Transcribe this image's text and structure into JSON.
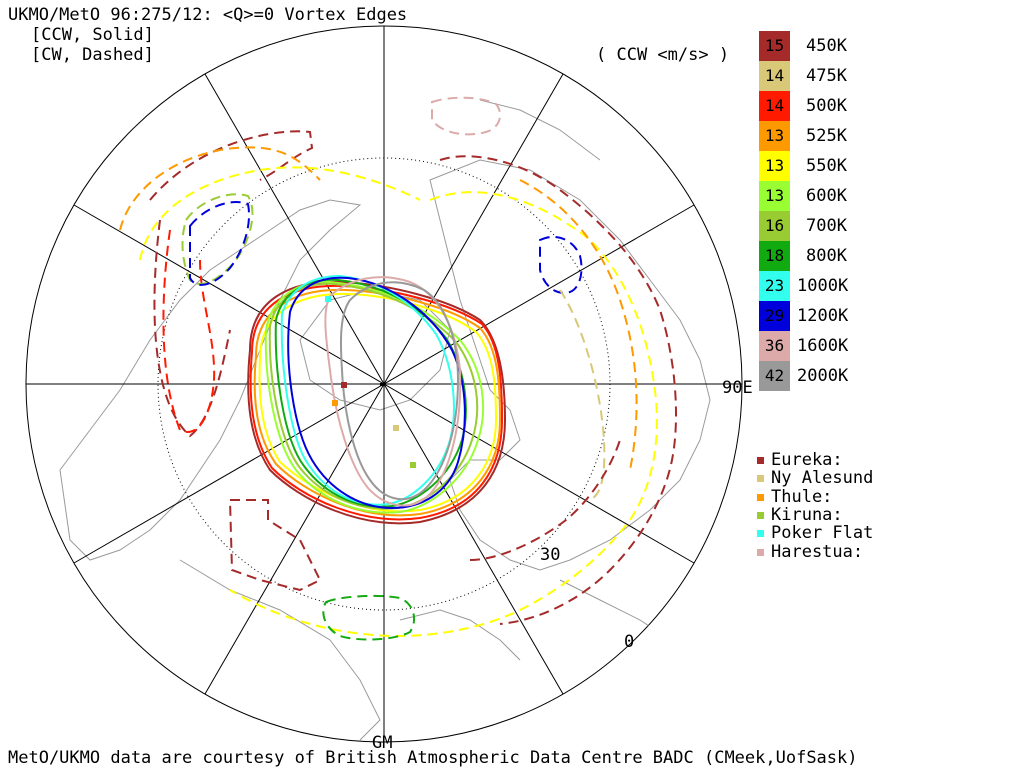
{
  "header": {
    "title": "UKMO/MetO 96:275/12: <Q>=0 Vortex Edges",
    "line2": "[CCW, Solid]",
    "line3": "[CW, Dashed]"
  },
  "legend": {
    "units": "( CCW <m/s> )",
    "levels": [
      {
        "value": "15",
        "label": "450K",
        "color": "#a52a2a"
      },
      {
        "value": "14",
        "label": "475K",
        "color": "#d8c878"
      },
      {
        "value": "14",
        "label": "500K",
        "color": "#ff1a00"
      },
      {
        "value": "13",
        "label": "525K",
        "color": "#ff9900"
      },
      {
        "value": "13",
        "label": "550K",
        "color": "#ffff00"
      },
      {
        "value": "13",
        "label": "600K",
        "color": "#99ff33"
      },
      {
        "value": "16",
        "label": "700K",
        "color": "#99cc33"
      },
      {
        "value": "18",
        "label": "800K",
        "color": "#11aa11"
      },
      {
        "value": "23",
        "label": "1000K",
        "color": "#33ffee"
      },
      {
        "value": "29",
        "label": "1200K",
        "color": "#0000dd"
      },
      {
        "value": "36",
        "label": "1600K",
        "color": "#ddaaaa"
      },
      {
        "value": "42",
        "label": "2000K",
        "color": "#999999"
      }
    ]
  },
  "stations": [
    {
      "name": "Eureka:",
      "color": "#a52a2a"
    },
    {
      "name": "Ny Alesund",
      "color": "#d8c878"
    },
    {
      "name": "Thule:",
      "color": "#ff9900"
    },
    {
      "name": "Kiruna:",
      "color": "#99cc33"
    },
    {
      "name": "Poker Flat",
      "color": "#33ffee"
    },
    {
      "name": "Harestua:",
      "color": "#ddaaaa"
    }
  ],
  "map_labels": {
    "lon_90e": "90E",
    "lon_gm": "GM",
    "lat_30": "30",
    "lat_0": "0"
  },
  "footer": "MetO/UKMO data are courtesy of British Atmospheric Data Centre BADC (CMeek,UofSask)"
}
